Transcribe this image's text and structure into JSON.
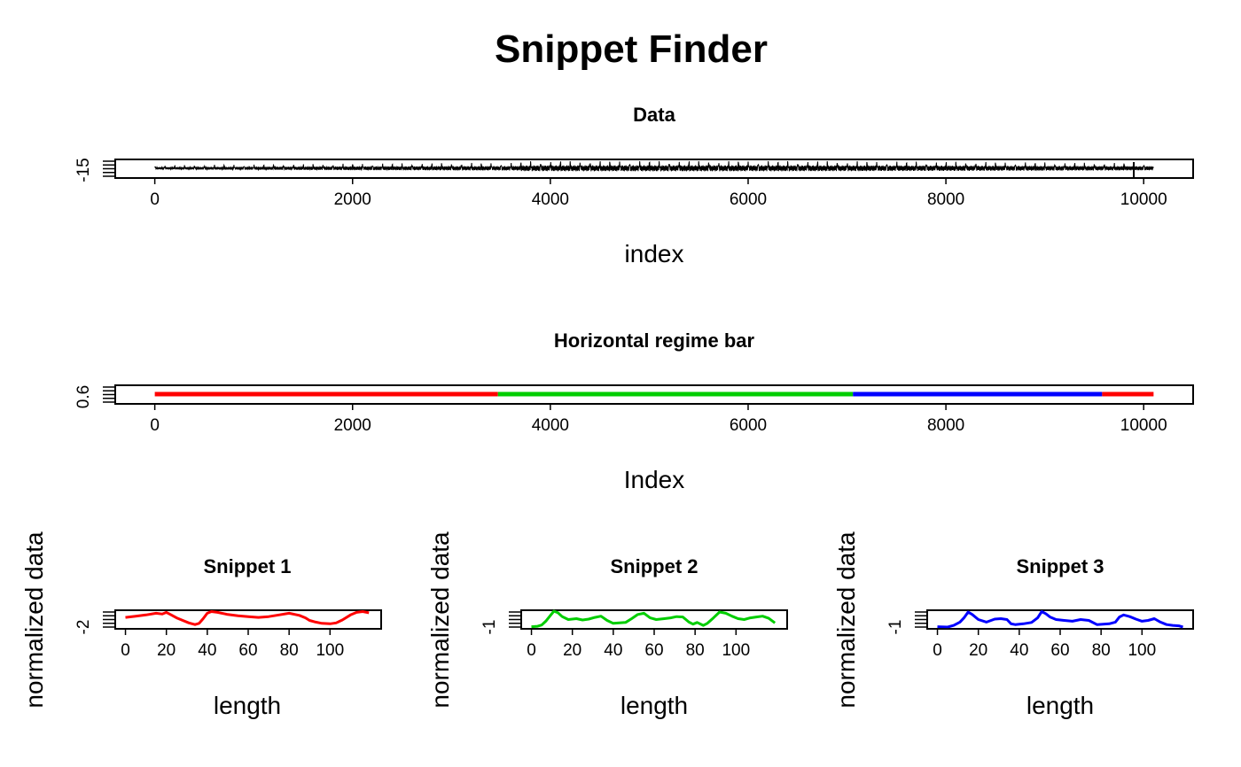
{
  "main_title": "Snippet Finder",
  "colors": {
    "red": "#ff0000",
    "green": "#00cd00",
    "blue": "#0000ff",
    "black": "#000000"
  },
  "chart_data": [
    {
      "id": "data",
      "type": "line",
      "title": "Data",
      "xlabel": "index",
      "ylabel": "",
      "x_ticks": [
        0,
        2000,
        4000,
        6000,
        8000,
        10000
      ],
      "y_tick_label": "-15",
      "xlim": [
        -400,
        10500
      ],
      "n_points": 10100,
      "series": [
        {
          "color": "#000000"
        }
      ]
    },
    {
      "id": "regime",
      "type": "line",
      "title": "Horizontal regime bar",
      "xlabel": "Index",
      "ylabel": "",
      "x_ticks": [
        0,
        2000,
        4000,
        6000,
        8000,
        10000
      ],
      "y_tick_label": "0.6",
      "xlim": [
        -400,
        10500
      ],
      "segments": [
        {
          "start": 0,
          "end": 3470,
          "color": "#ff0000"
        },
        {
          "start": 3470,
          "end": 7060,
          "color": "#00cd00"
        },
        {
          "start": 7060,
          "end": 9580,
          "color": "#0000ff"
        },
        {
          "start": 9580,
          "end": 10100,
          "color": "#ff0000"
        }
      ]
    },
    {
      "id": "snippet1",
      "type": "line",
      "title": "Snippet 1",
      "xlabel": "length",
      "ylabel": "normalized data",
      "x_ticks": [
        0,
        20,
        40,
        60,
        80,
        100
      ],
      "y_tick_label": "-2",
      "xlim": [
        -5,
        125
      ],
      "color": "#ff0000",
      "x": [
        0,
        5,
        10,
        15,
        18,
        20,
        22,
        25,
        28,
        31,
        34,
        36,
        38,
        40,
        42,
        45,
        50,
        55,
        60,
        65,
        70,
        75,
        80,
        85,
        88,
        90,
        93,
        96,
        100,
        103,
        106,
        110,
        113,
        116,
        119
      ],
      "y": [
        0.25,
        0.4,
        0.55,
        0.75,
        0.65,
        0.85,
        0.6,
        0.2,
        -0.1,
        -0.4,
        -0.6,
        -0.45,
        0.1,
        0.75,
        0.95,
        0.85,
        0.6,
        0.45,
        0.35,
        0.25,
        0.35,
        0.55,
        0.75,
        0.5,
        0.2,
        -0.1,
        -0.3,
        -0.45,
        -0.5,
        -0.4,
        -0.05,
        0.55,
        0.85,
        0.95,
        0.8
      ]
    },
    {
      "id": "snippet2",
      "type": "line",
      "title": "Snippet 2",
      "xlabel": "length",
      "ylabel": "normalized data",
      "x_ticks": [
        0,
        20,
        40,
        60,
        80,
        100
      ],
      "y_tick_label": "-1",
      "xlim": [
        -5,
        125
      ],
      "color": "#00cd00",
      "x": [
        0,
        3,
        5,
        7,
        9,
        11,
        13,
        15,
        18,
        22,
        25,
        28,
        31,
        34,
        37,
        40,
        43,
        46,
        49,
        52,
        55,
        58,
        61,
        65,
        68,
        71,
        74,
        77,
        79,
        81,
        84,
        86,
        89,
        92,
        95,
        98,
        101,
        104,
        107,
        110,
        113,
        116,
        119
      ],
      "y": [
        -0.85,
        -0.8,
        -0.65,
        -0.2,
        0.4,
        1.0,
        0.8,
        0.35,
        0.0,
        0.1,
        -0.05,
        0.05,
        0.25,
        0.4,
        -0.1,
        -0.45,
        -0.4,
        -0.35,
        0.1,
        0.6,
        0.75,
        0.2,
        0.0,
        0.1,
        0.2,
        0.35,
        0.3,
        -0.3,
        -0.55,
        -0.35,
        -0.7,
        -0.45,
        0.2,
        0.9,
        0.75,
        0.4,
        0.1,
        0.0,
        0.2,
        0.3,
        0.4,
        0.15,
        -0.4
      ]
    },
    {
      "id": "snippet3",
      "type": "line",
      "title": "Snippet 3",
      "xlabel": "length",
      "ylabel": "normalized data",
      "x_ticks": [
        0,
        20,
        40,
        60,
        80,
        100
      ],
      "y_tick_label": "-1",
      "xlim": [
        -5,
        125
      ],
      "color": "#0000ff",
      "x": [
        0,
        5,
        8,
        11,
        13,
        15,
        17,
        20,
        24,
        28,
        31,
        34,
        36,
        38,
        42,
        46,
        49,
        51,
        53,
        55,
        58,
        62,
        66,
        70,
        74,
        78,
        81,
        84,
        87,
        89,
        91,
        94,
        97,
        100,
        103,
        106,
        109,
        112,
        115,
        118,
        120
      ],
      "y": [
        -0.85,
        -0.9,
        -0.7,
        -0.3,
        0.2,
        0.9,
        0.6,
        0.0,
        -0.3,
        0.05,
        0.1,
        0.0,
        -0.5,
        -0.6,
        -0.5,
        -0.35,
        0.2,
        0.95,
        0.7,
        0.3,
        0.0,
        -0.1,
        -0.2,
        0.0,
        -0.1,
        -0.6,
        -0.55,
        -0.5,
        -0.3,
        0.3,
        0.55,
        0.35,
        0.05,
        -0.2,
        -0.1,
        0.1,
        -0.3,
        -0.6,
        -0.7,
        -0.75,
        -0.9
      ]
    }
  ]
}
